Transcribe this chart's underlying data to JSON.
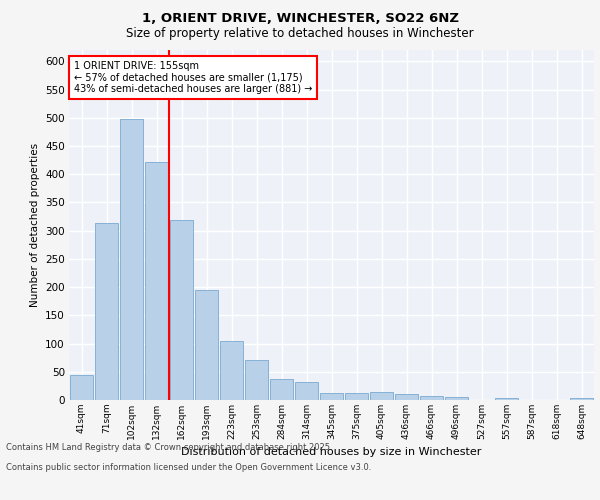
{
  "title_line1": "1, ORIENT DRIVE, WINCHESTER, SO22 6NZ",
  "title_line2": "Size of property relative to detached houses in Winchester",
  "xlabel": "Distribution of detached houses by size in Winchester",
  "ylabel": "Number of detached properties",
  "categories": [
    "41sqm",
    "71sqm",
    "102sqm",
    "132sqm",
    "162sqm",
    "193sqm",
    "223sqm",
    "253sqm",
    "284sqm",
    "314sqm",
    "345sqm",
    "375sqm",
    "405sqm",
    "436sqm",
    "466sqm",
    "496sqm",
    "527sqm",
    "557sqm",
    "587sqm",
    "618sqm",
    "648sqm"
  ],
  "values": [
    45,
    313,
    497,
    422,
    319,
    194,
    104,
    70,
    37,
    32,
    13,
    12,
    14,
    10,
    7,
    5,
    0,
    4,
    0,
    0,
    4
  ],
  "bar_color": "#b8d0e8",
  "bar_edge_color": "#7aaad0",
  "red_line_index": 4,
  "annotation_title": "1 ORIENT DRIVE: 155sqm",
  "annotation_line1": "← 57% of detached houses are smaller (1,175)",
  "annotation_line2": "43% of semi-detached houses are larger (881) →",
  "ylim": [
    0,
    620
  ],
  "yticks": [
    0,
    50,
    100,
    150,
    200,
    250,
    300,
    350,
    400,
    450,
    500,
    550,
    600
  ],
  "background_color": "#eef2f8",
  "grid_color": "#ffffff",
  "fig_background": "#f5f5f5",
  "footer_line1": "Contains HM Land Registry data © Crown copyright and database right 2025.",
  "footer_line2": "Contains public sector information licensed under the Open Government Licence v3.0."
}
